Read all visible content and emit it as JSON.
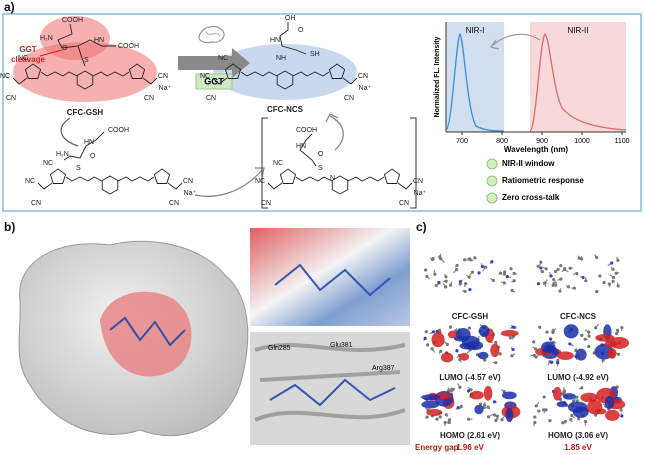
{
  "panel_a": {
    "label": "a)",
    "cleavage_label": [
      "GGT",
      "cleavage"
    ],
    "enzyme": "GGT",
    "reactant": "CFC-GSH",
    "product": "CFC-NCS",
    "core_atoms": [
      "NC",
      "CN",
      "NC",
      "CN",
      "CN",
      "Na⁺"
    ],
    "reactant_atoms": [
      "COOH",
      "H₂N",
      "O",
      "HN",
      "COOH",
      "S"
    ],
    "product_atoms": [
      "OH",
      "O",
      "HN",
      "SH",
      "NH"
    ],
    "intermediate_atoms": [
      "COOH",
      "HN",
      "H₂N",
      "O",
      "S"
    ],
    "bracket_atoms": [
      "COOH",
      "HN",
      "O",
      "S",
      "N"
    ],
    "chart": {
      "bands": [
        "NIR-I",
        "NIR-II"
      ],
      "y_label": "Normalized FL. Intensity",
      "x_label": "Wavelength (nm)",
      "x_ticks": [
        "700",
        "800",
        "900",
        "1000",
        "1100"
      ]
    },
    "features": [
      "NIR-II window",
      "Ratiometric response",
      "Zero cross-talk"
    ]
  },
  "panel_b": {
    "label": "b)",
    "residues": [
      "Gln285",
      "Glu381",
      "Arg387"
    ]
  },
  "panel_c": {
    "label": "c)",
    "molecules": [
      "CFC-GSH",
      "CFC-NCS"
    ],
    "lumo": [
      "LUMO (-4.57 eV)",
      "LUMO (-4.92 eV)"
    ],
    "homo": [
      "HOMO (2.61 eV)",
      "HOMO (3.06 eV)"
    ],
    "gap_label": "Energy gap",
    "gaps": [
      "1.96 eV",
      "1.85 eV"
    ]
  }
}
